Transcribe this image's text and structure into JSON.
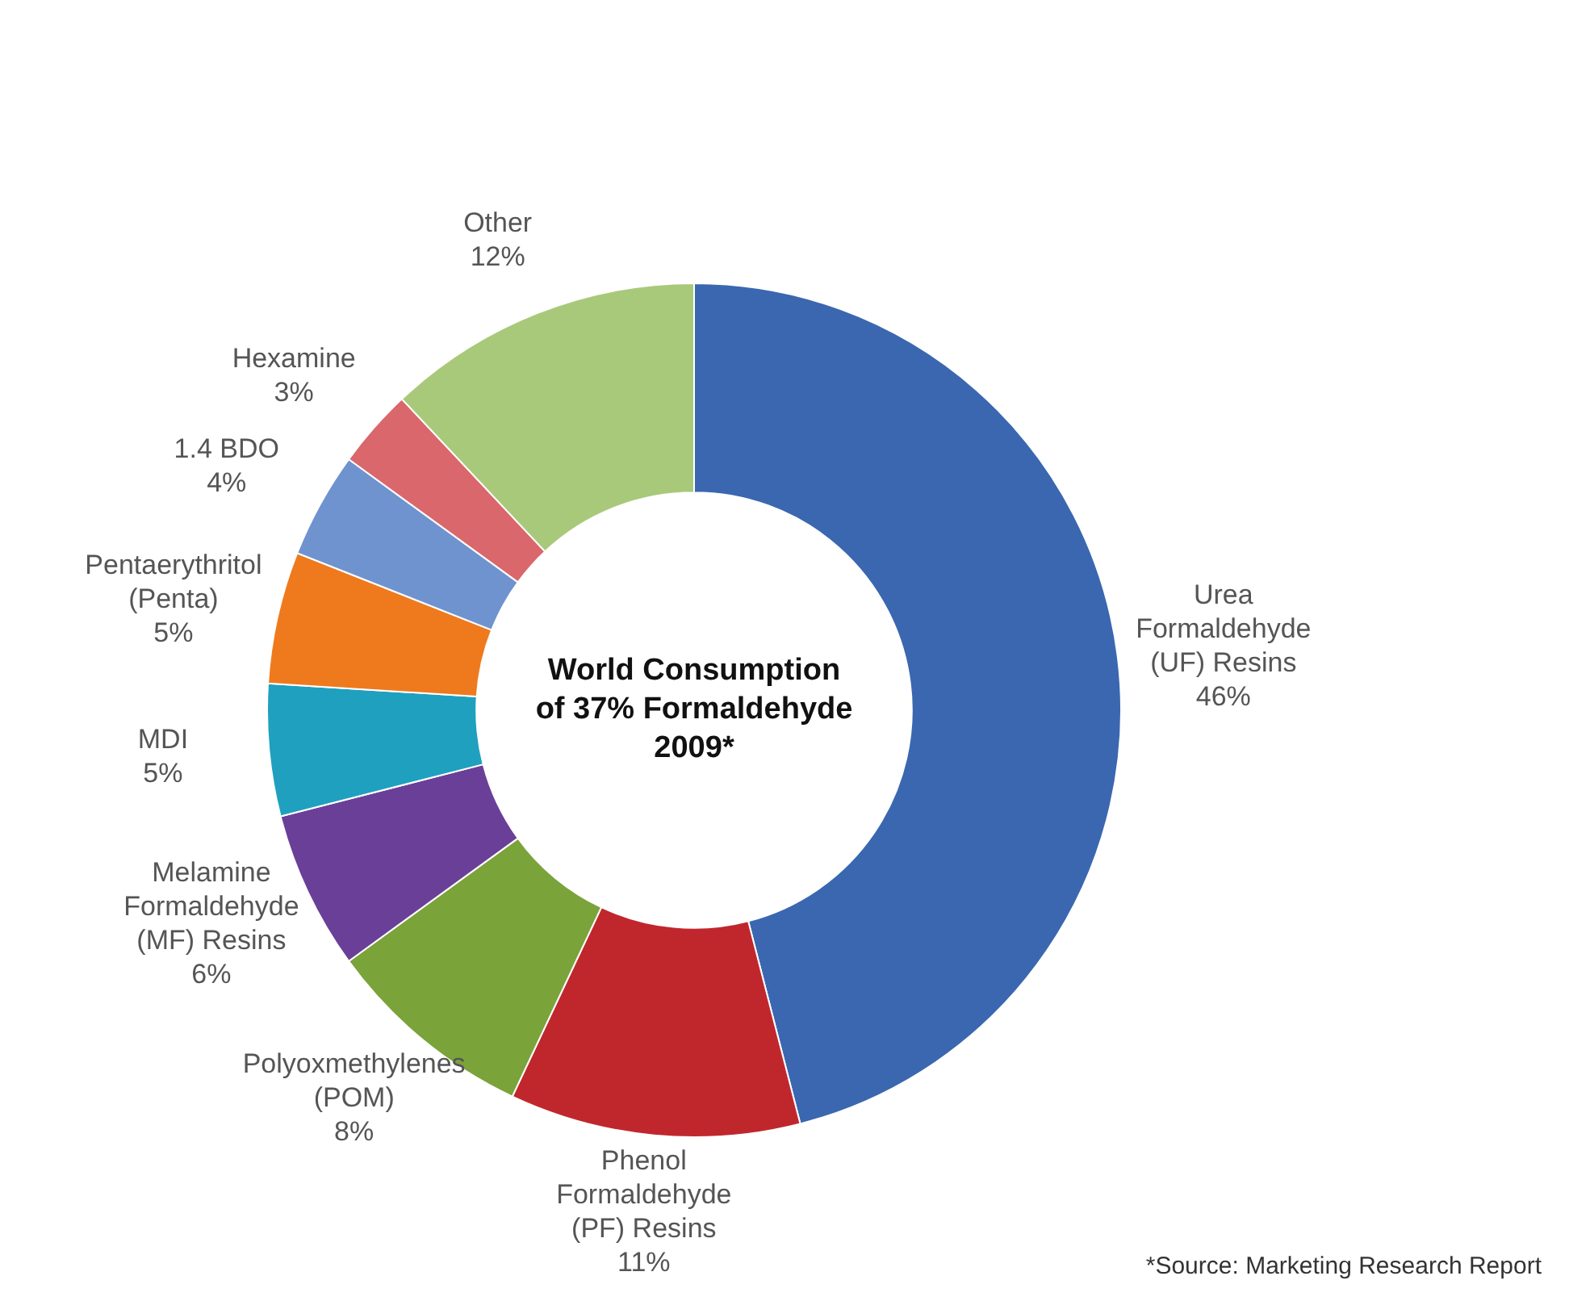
{
  "chart_data": {
    "type": "donut",
    "title": "World Consumption of 37% Formaldehyde 2009*",
    "categories": [
      "Urea Formaldehyde (UF) Resins",
      "Phenol Formaldehyde (PF) Resins",
      "Polyoxmethylenes (POM)",
      "Melamine Formaldehyde (MF) Resins",
      "MDI",
      "Pentaerythritol (Penta)",
      "1.4 BDO",
      "Hexamine",
      "Other"
    ],
    "values": [
      46,
      11,
      8,
      6,
      5,
      5,
      4,
      3,
      12
    ],
    "value_labels": [
      "46%",
      "11%",
      "8%",
      "6%",
      "5%",
      "5%",
      "4%",
      "3%",
      "12%"
    ],
    "colors": [
      "#3a67b0",
      "#c0272d",
      "#7aa33a",
      "#6a3f98",
      "#1fa0bf",
      "#ef7a1d",
      "#6f93cf",
      "#d9676b",
      "#a9c97a"
    ],
    "legend": false,
    "annotations": [
      "*Source: Marketing Research Report"
    ]
  }
}
